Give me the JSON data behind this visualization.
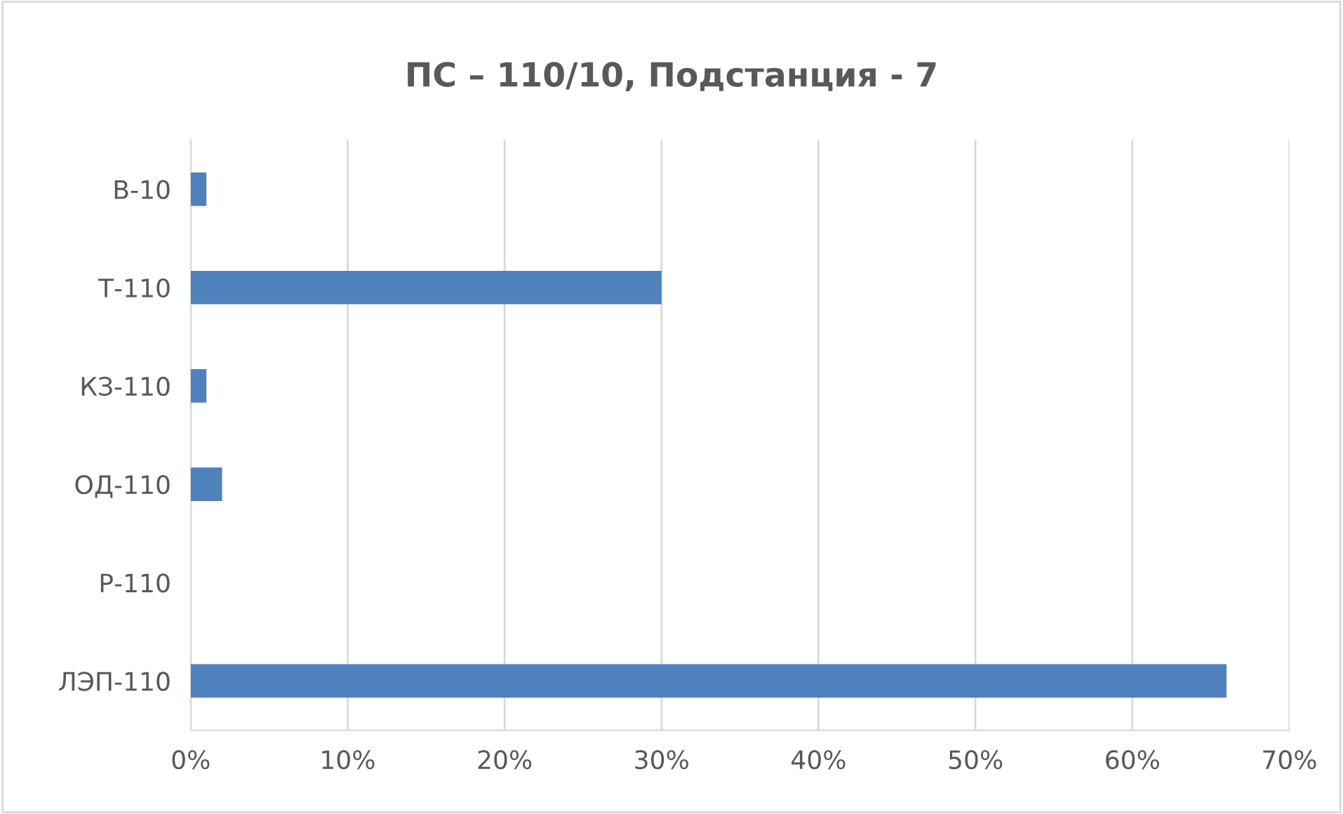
{
  "chart_data": {
    "type": "bar",
    "orientation": "horizontal",
    "title": "ПС – 110/10, Подстанция - 7",
    "categories": [
      "В-10",
      "Т-110",
      "КЗ-110",
      "ОД-110",
      "Р-110",
      "ЛЭП-110"
    ],
    "values": [
      1,
      30,
      1,
      2,
      0,
      66
    ],
    "color": "#4f81bd",
    "xlim": [
      0,
      70
    ],
    "xticks": [
      {
        "value": 0,
        "label": "0%"
      },
      {
        "value": 10,
        "label": "10%"
      },
      {
        "value": 20,
        "label": "20%"
      },
      {
        "value": 30,
        "label": "30%"
      },
      {
        "value": 40,
        "label": "40%"
      },
      {
        "value": 50,
        "label": "50%"
      },
      {
        "value": 60,
        "label": "60%"
      },
      {
        "value": 70,
        "label": "70%"
      }
    ],
    "grid": "x"
  }
}
